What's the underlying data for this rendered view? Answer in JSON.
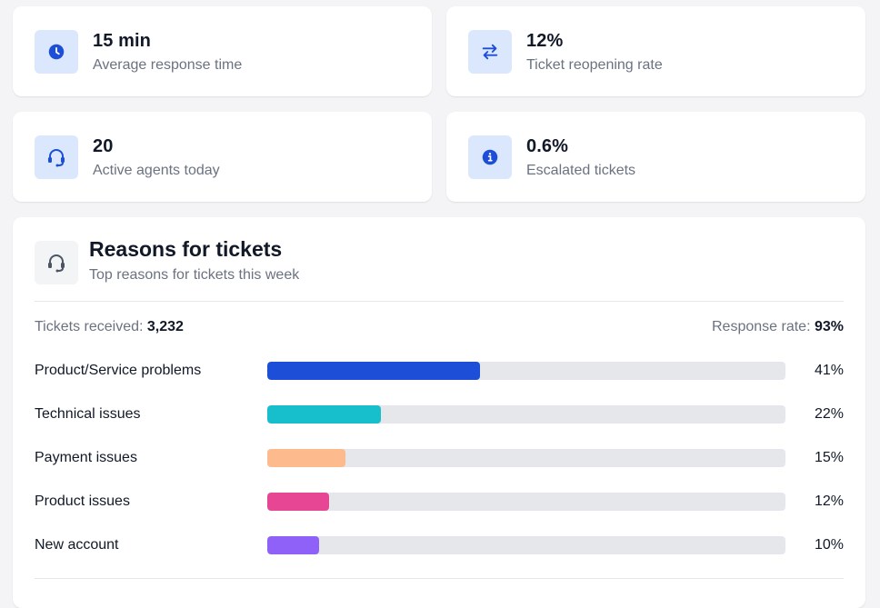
{
  "stats": [
    {
      "value": "15 min",
      "label": "Average response time",
      "icon": "clock-icon"
    },
    {
      "value": "12%",
      "label": "Ticket reopening rate",
      "icon": "arrows-exchange-icon"
    },
    {
      "value": "20",
      "label": "Active agents today",
      "icon": "headset-icon"
    },
    {
      "value": "0.6%",
      "label": "Escalated tickets",
      "icon": "info-icon"
    }
  ],
  "reasons": {
    "title": "Reasons for tickets",
    "subtitle": "Top reasons for tickets this week",
    "received_label": "Tickets received:",
    "received_value": "3,232",
    "rate_label": "Response rate:",
    "rate_value": "93%",
    "items": [
      {
        "name": "Product/Service problems",
        "percent": 41,
        "percent_label": "41%",
        "color": "#1d4ed8"
      },
      {
        "name": "Technical issues",
        "percent": 22,
        "percent_label": "22%",
        "color": "#17bfcc"
      },
      {
        "name": "Payment issues",
        "percent": 15,
        "percent_label": "15%",
        "color": "#fdba8c"
      },
      {
        "name": "Product issues",
        "percent": 12,
        "percent_label": "12%",
        "color": "#e74694"
      },
      {
        "name": "New account",
        "percent": 10,
        "percent_label": "10%",
        "color": "#9061f9"
      }
    ]
  },
  "colors": {
    "accent": "#1d4ed8",
    "icon_bg": "#dbe7fd",
    "muted": "#6b7280",
    "track": "#e5e7eb"
  }
}
